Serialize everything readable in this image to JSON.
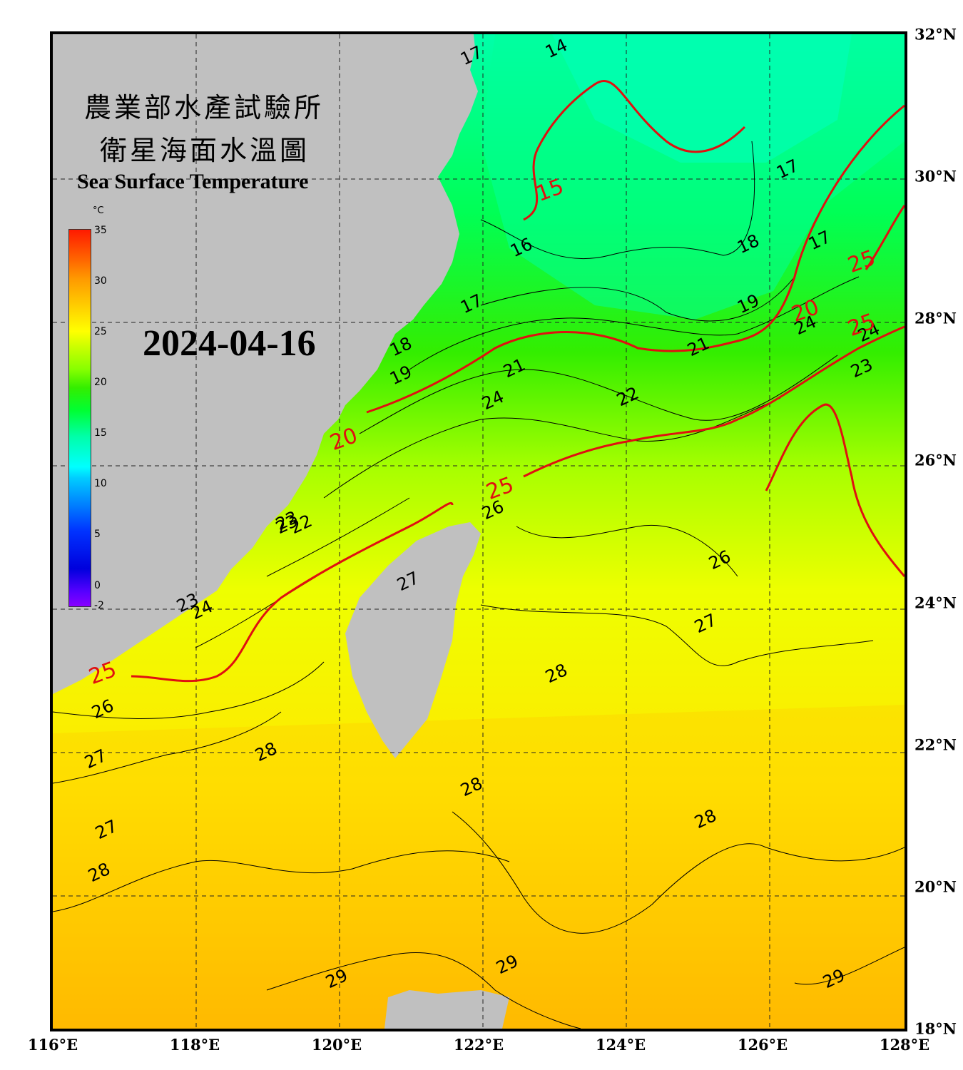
{
  "title": {
    "zh_line1": "農業部水產試驗所",
    "zh_line2": "衛星海面水溫圖",
    "en": "Sea Surface Temperature"
  },
  "date": "2024-04-16",
  "colorbar": {
    "unit": "°C",
    "ticks": [
      "35",
      "30",
      "25",
      "20",
      "15",
      "10",
      "5",
      "0",
      "-2"
    ],
    "range": [
      -2,
      35
    ]
  },
  "axes": {
    "lon_labels": [
      "116°E",
      "118°E",
      "120°E",
      "122°E",
      "124°E",
      "126°E",
      "128°E"
    ],
    "lat_labels": [
      "32°N",
      "30°N",
      "28°N",
      "26°N",
      "24°N",
      "22°N",
      "20°N",
      "18°N"
    ],
    "lon_range": [
      116,
      128
    ],
    "lat_range": [
      18,
      32
    ],
    "gridlines": "dashed"
  },
  "contour_labels": {
    "black": [
      "14",
      "17",
      "17",
      "16",
      "17",
      "17",
      "18",
      "18",
      "19",
      "19",
      "21",
      "22",
      "23",
      "24",
      "21",
      "22",
      "23",
      "24",
      "23",
      "24",
      "22",
      "23",
      "24",
      "26",
      "26",
      "26",
      "27",
      "27",
      "27",
      "27",
      "28",
      "28",
      "28",
      "28",
      "28",
      "29",
      "29",
      "29"
    ],
    "red": [
      "15",
      "20",
      "20",
      "25",
      "25",
      "25",
      "25"
    ]
  },
  "colors": {
    "land": "#c0c0c0",
    "contour_major": "#e01010",
    "contour_minor": "#000000",
    "sst_cold": "#00ffaa",
    "sst_mid": "#33ee00",
    "sst_warm": "#ffee00",
    "sst_hot": "#ffaa00"
  }
}
